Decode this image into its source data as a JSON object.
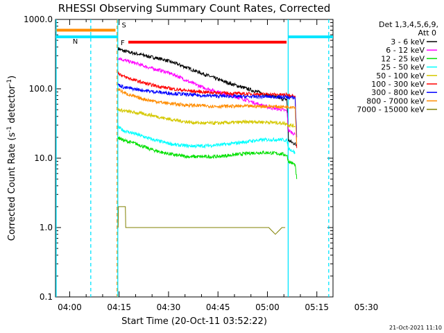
{
  "chart_data": {
    "type": "line",
    "title": "RHESSI Observing Summary Count Rates, Corrected",
    "xlabel": "Start Time (20-Oct-11 03:52:22)",
    "ylabel_main": "Corrected Count Rate (s",
    "ylabel_sup1": "-1",
    "ylabel_mid": " detector",
    "ylabel_sup2": "-1",
    "ylabel_end": ")",
    "yscale": "log",
    "ylim": [
      0.1,
      1000
    ],
    "y_tick_values": [
      0.1,
      1,
      10,
      100,
      1000
    ],
    "y_tick_labels": [
      "0.1",
      "1.0",
      "10.0",
      "100.0",
      "1000.0"
    ],
    "xlim_minutes": [
      3.3,
      87.5
    ],
    "x_tick_minutes": [
      7.6,
      22.6,
      37.6,
      52.6,
      67.6,
      82.6
    ],
    "x_tick_labels": [
      "04:00",
      "04:15",
      "04:30",
      "04:45",
      "05:00",
      "05:15",
      "05:30"
    ],
    "x_tick_label_minutes": [
      7.6,
      22.6,
      37.6,
      52.6,
      67.6,
      82.6,
      97.6
    ],
    "legend": {
      "header1": "Det 1,3,4,5,6,9,",
      "header2": "Att 0",
      "entries": [
        {
          "label": "3 - 6 keV",
          "color": "#000000"
        },
        {
          "label": "6 - 12 keV",
          "color": "#ff00ff"
        },
        {
          "label": "12 - 25 keV",
          "color": "#00e000"
        },
        {
          "label": "25 - 50 keV",
          "color": "#00ffff"
        },
        {
          "label": "50 - 100 keV",
          "color": "#d4c800"
        },
        {
          "label": "100 - 300 keV",
          "color": "#ff0000"
        },
        {
          "label": "300 - 800 keV",
          "color": "#0000ff"
        },
        {
          "label": "800 - 7000 keV",
          "color": "#ff8c00"
        },
        {
          "label": "7000 - 15000 keV",
          "color": "#808000"
        }
      ]
    },
    "flags": [
      {
        "label": "N",
        "color": "#00e5ff",
        "segments": [
          [
            3.3,
            22.2
          ],
          [
            73.9,
            87.5
          ]
        ],
        "level": 560
      },
      {
        "label": "S",
        "color": "#ff8c00",
        "segments": [
          [
            3.3,
            21.5
          ]
        ],
        "level": 700
      },
      {
        "label": "F",
        "color": "#ff0000",
        "segments": [
          [
            25.4,
            73.4
          ]
        ],
        "level": 470
      }
    ],
    "vlines": [
      {
        "minute": 14.0,
        "color": "#00e5ff",
        "style": "dashed"
      },
      {
        "minute": 22.0,
        "color": "#ff8c00",
        "style": "dashed"
      },
      {
        "minute": 22.2,
        "color": "#00e5ff",
        "style": "solid"
      },
      {
        "minute": 73.9,
        "color": "#00e5ff",
        "style": "solid"
      },
      {
        "minute": 86.2,
        "color": "#00e5ff",
        "style": "dashed"
      },
      {
        "minute": 3.5,
        "color": "#00e5ff",
        "style": "solid"
      }
    ],
    "series": [
      {
        "name": "3 - 6 keV",
        "color": "#000000",
        "x": [
          22.3,
          24,
          28,
          32,
          36,
          40,
          44,
          48,
          52,
          56,
          60,
          64,
          68,
          72,
          73.5,
          74,
          76,
          76.5
        ],
        "y": [
          380,
          350,
          320,
          290,
          265,
          230,
          195,
          165,
          140,
          120,
          105,
          92,
          80,
          72,
          70,
          18,
          16,
          15
        ]
      },
      {
        "name": "6 - 12 keV",
        "color": "#ff00ff",
        "x": [
          22.3,
          24,
          28,
          32,
          36,
          40,
          44,
          48,
          52,
          56,
          60,
          64,
          68,
          72,
          73.5,
          74,
          76
        ],
        "y": [
          280,
          260,
          230,
          200,
          180,
          155,
          125,
          105,
          92,
          82,
          72,
          62,
          54,
          50,
          48,
          25,
          22
        ]
      },
      {
        "name": "12 - 25 keV",
        "color": "#00e000",
        "x": [
          22.3,
          24,
          28,
          32,
          36,
          40,
          44,
          48,
          52,
          56,
          60,
          64,
          68,
          72,
          73.5,
          74,
          76,
          76.5
        ],
        "y": [
          20,
          18,
          16,
          13.5,
          12,
          11,
          10.5,
          10.5,
          10.5,
          11,
          11.5,
          12,
          12,
          11.5,
          11,
          9,
          8,
          5
        ]
      },
      {
        "name": "25 - 50 keV",
        "color": "#00ffff",
        "x": [
          22.3,
          24,
          28,
          32,
          36,
          40,
          44,
          48,
          52,
          56,
          60,
          64,
          68,
          72,
          73.5,
          74,
          76
        ],
        "y": [
          28,
          25,
          22,
          19,
          17,
          15.5,
          15,
          15,
          15.5,
          16,
          17,
          18,
          18.5,
          18.5,
          18,
          14,
          12
        ]
      },
      {
        "name": "50 - 100 keV",
        "color": "#d4c800",
        "x": [
          22.3,
          24,
          28,
          32,
          36,
          40,
          44,
          48,
          52,
          56,
          60,
          64,
          68,
          72,
          73.5,
          74,
          76
        ],
        "y": [
          50,
          48,
          45,
          42,
          38,
          35,
          33,
          32,
          32,
          32.5,
          33,
          33.5,
          33,
          32,
          31.5,
          30,
          29
        ]
      },
      {
        "name": "100 - 300 keV",
        "color": "#ff0000",
        "x": [
          22.3,
          24,
          28,
          32,
          36,
          40,
          44,
          48,
          52,
          56,
          60,
          64,
          68,
          72,
          73.5,
          74,
          76,
          76.5
        ],
        "y": [
          170,
          150,
          130,
          115,
          105,
          98,
          93,
          90,
          88,
          86,
          85,
          84,
          83,
          82,
          82,
          81,
          80,
          14
        ]
      },
      {
        "name": "300 - 800 keV",
        "color": "#0000ff",
        "x": [
          22.3,
          24,
          28,
          32,
          36,
          40,
          44,
          48,
          52,
          56,
          60,
          64,
          68,
          72,
          73.5,
          74,
          76,
          76.5
        ],
        "y": [
          115,
          105,
          98,
          92,
          88,
          85,
          82,
          80,
          79,
          78,
          77,
          77,
          77,
          76,
          76,
          75,
          74,
          20
        ]
      },
      {
        "name": "800 - 7000 keV",
        "color": "#ff8c00",
        "x": [
          22.3,
          24,
          28,
          32,
          36,
          40,
          44,
          48,
          52,
          56,
          60,
          64,
          68,
          72,
          73.5,
          74,
          76,
          76.5
        ],
        "y": [
          100,
          88,
          75,
          68,
          63,
          60,
          58,
          57,
          56,
          56,
          56,
          56,
          56,
          55,
          55,
          55,
          55,
          16
        ]
      },
      {
        "name": "7000 - 15000 keV",
        "color": "#808000",
        "x": [
          22.3,
          22.4,
          24.5,
          24.6,
          25.5,
          28,
          36,
          44,
          52,
          56,
          60,
          64,
          68,
          70,
          72,
          73
        ],
        "y": [
          1.0,
          2.0,
          2.0,
          1.0,
          1.0,
          1.0,
          1.0,
          1.0,
          1.0,
          1.0,
          1.0,
          1.0,
          1.0,
          0.8,
          1.0,
          1.0
        ]
      }
    ]
  },
  "footer": {
    "timestamp": "21-Oct-2021 11:10"
  }
}
